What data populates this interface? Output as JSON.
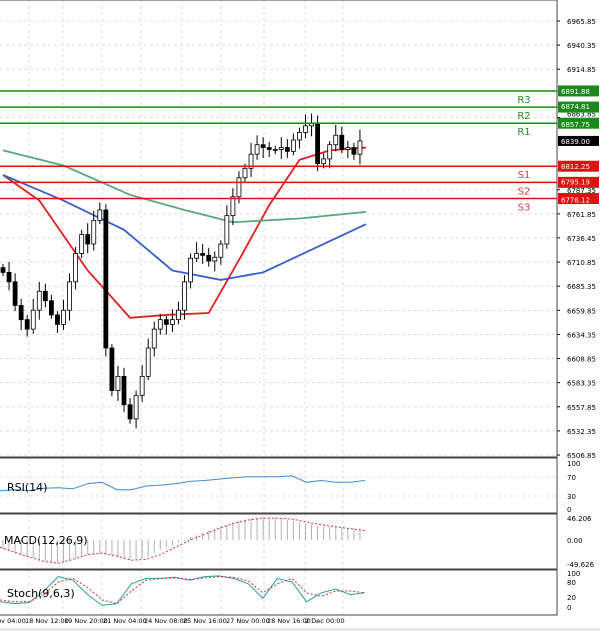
{
  "chart_data": {
    "type": "candlestick",
    "price_axis": {
      "range": [
        6506.85,
        6965.85
      ],
      "tick_labels": [
        "6965.85",
        "6940.35",
        "6914.85",
        "6863.85",
        "6787.35",
        "6761.85",
        "6736.45",
        "6710.85",
        "6685.35",
        "6659.85",
        "6634.35",
        "6608.85",
        "6583.35",
        "6557.85",
        "6532.35",
        "6506.85"
      ],
      "current_price": "6839.00"
    },
    "time_labels": [
      "17 Nov 04:00",
      "18 Nov 12:00",
      "19 Nov 20:00",
      "21 Nov 04:00",
      "24 Nov 08:00",
      "25 Nov 16:00",
      "27 Nov 00:00",
      "28 Nov 16:00",
      "2 Dec 00:00"
    ],
    "closes": [
      6700,
      6690,
      6665,
      6650,
      6640,
      6660,
      6680,
      6670,
      6655,
      6645,
      6660,
      6690,
      6720,
      6740,
      6730,
      6755,
      6766,
      6620,
      6575,
      6590,
      6560,
      6545,
      6570,
      6590,
      6620,
      6640,
      6650,
      6645,
      6650,
      6660,
      6690,
      6715,
      6720,
      6718,
      6712,
      6716,
      6730,
      6760,
      6780,
      6800,
      6810,
      6825,
      6835,
      6832,
      6830,
      6830,
      6832,
      6828,
      6840,
      6848,
      6855,
      6858,
      6815,
      6820,
      6835,
      6845,
      6830,
      6832,
      6825,
      6839
    ],
    "moving_averages": [
      {
        "color": "#e02020",
        "points": [
          [
            0,
            6803
          ],
          [
            6,
            6776
          ],
          [
            14,
            6702
          ],
          [
            21,
            6652
          ],
          [
            27,
            6655
          ],
          [
            34,
            6657
          ],
          [
            39,
            6713
          ],
          [
            44,
            6771
          ],
          [
            49,
            6819
          ],
          [
            54,
            6829
          ],
          [
            60,
            6832
          ]
        ]
      },
      {
        "color": "#3a5fc8",
        "points": [
          [
            0,
            6803
          ],
          [
            10,
            6776
          ],
          [
            20,
            6745
          ],
          [
            28,
            6702
          ],
          [
            36,
            6692
          ],
          [
            43,
            6700
          ],
          [
            49,
            6718
          ],
          [
            60,
            6751
          ]
        ]
      },
      {
        "color": "#5aa878",
        "points": [
          [
            0,
            6829
          ],
          [
            10,
            6813
          ],
          [
            21,
            6782
          ],
          [
            30,
            6766
          ],
          [
            38,
            6753
          ],
          [
            49,
            6757
          ],
          [
            60,
            6764
          ]
        ]
      }
    ],
    "levels": [
      {
        "name": "R3",
        "value": "6891.88",
        "kind": "resistance"
      },
      {
        "name": "R2",
        "value": "6874.81",
        "kind": "resistance"
      },
      {
        "name": "R1",
        "value": "6857.75",
        "kind": "resistance"
      },
      {
        "name": "S1",
        "value": "6812.25",
        "kind": "support"
      },
      {
        "name": "S2",
        "value": "6795.19",
        "kind": "support"
      },
      {
        "name": "S3",
        "value": "6778.12",
        "kind": "support"
      }
    ],
    "colors": {
      "resistance": "#1a8a1a",
      "support": "#e01010",
      "bull": "#2a9a2a",
      "bear": "#d02020",
      "current": "#000000"
    },
    "rsi": {
      "label": "RSI(14)",
      "ticks": [
        "100",
        "70",
        "30",
        "0"
      ],
      "values": [
        40,
        42,
        40,
        45,
        46,
        44,
        55,
        58,
        42,
        42,
        50,
        52,
        55,
        60,
        62,
        65,
        68,
        70,
        70,
        70,
        72,
        58,
        62,
        58,
        58,
        62
      ]
    },
    "macd": {
      "label": "MACD(12,26,9)",
      "ticks": [
        "46.206",
        "0.00",
        "-49.626"
      ],
      "hist": [
        -20,
        -30,
        -38,
        -45,
        -48,
        -40,
        -30,
        -28,
        -35,
        -42,
        -38,
        -20,
        -10,
        5,
        15,
        25,
        35,
        44,
        48,
        46,
        42,
        36,
        30,
        28,
        26,
        24
      ],
      "signal": [
        -15,
        -25,
        -35,
        -44,
        -48,
        -40,
        -30,
        -27,
        -33,
        -42,
        -40,
        -30,
        -15,
        0,
        12,
        25,
        35,
        42,
        46,
        46,
        44,
        38,
        32,
        28,
        24,
        20
      ]
    },
    "stoch": {
      "label": "Stoch(9,6,3)",
      "ticks": [
        "100",
        "80",
        "20",
        "0"
      ],
      "k": [
        20,
        15,
        18,
        50,
        90,
        80,
        40,
        10,
        15,
        70,
        85,
        85,
        88,
        80,
        90,
        92,
        85,
        70,
        30,
        85,
        75,
        20,
        45,
        55,
        40,
        45
      ],
      "d": [
        25,
        20,
        20,
        40,
        75,
        85,
        60,
        25,
        15,
        50,
        80,
        85,
        86,
        82,
        86,
        90,
        88,
        78,
        45,
        70,
        85,
        45,
        35,
        50,
        50,
        45
      ]
    }
  }
}
